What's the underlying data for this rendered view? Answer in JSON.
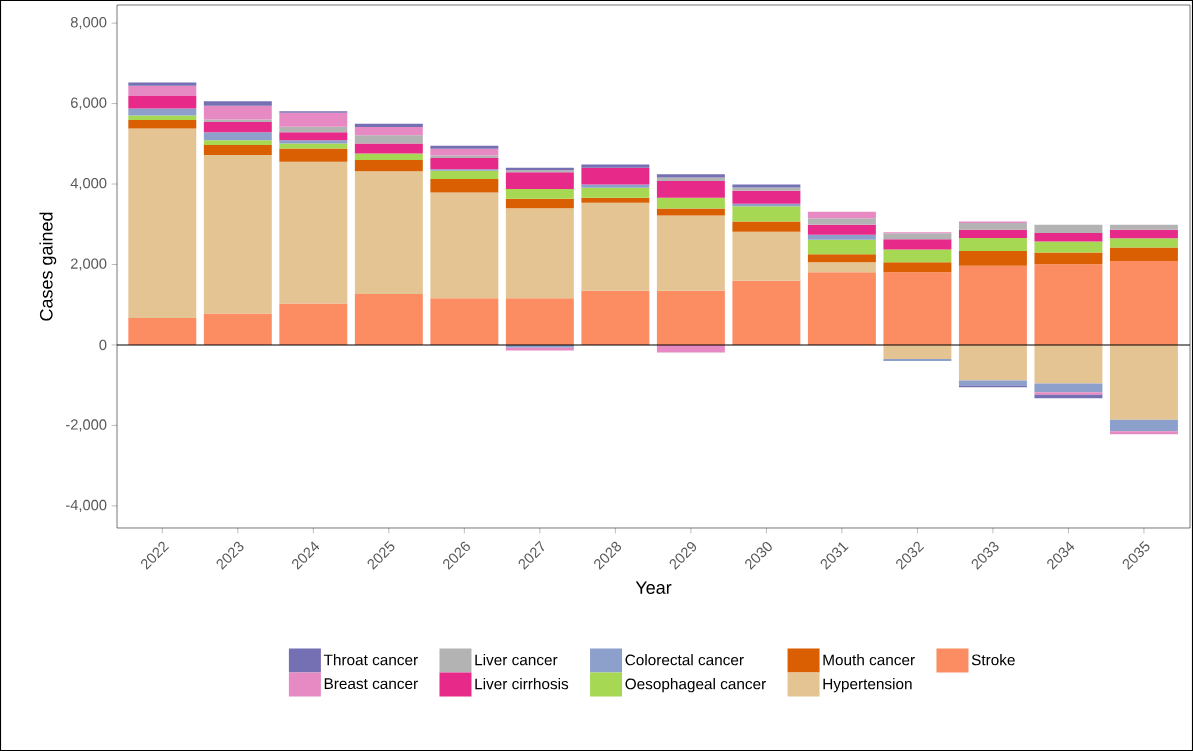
{
  "chart_data": {
    "type": "bar",
    "stacked": true,
    "xlabel": "Year",
    "ylabel": "Cases gained",
    "categories": [
      "2022",
      "2023",
      "2024",
      "2025",
      "2026",
      "2027",
      "2028",
      "2029",
      "2030",
      "2031",
      "2032",
      "2033",
      "2034",
      "2035"
    ],
    "series": [
      {
        "name": "Stroke",
        "color": "#fc8d62",
        "values": [
          670,
          780,
          1030,
          1265,
          1160,
          1160,
          1350,
          1350,
          1595,
          1805,
          1805,
          1970,
          2005,
          2085
        ]
      },
      {
        "name": "Hypertension",
        "color": "#e5c494",
        "values": [
          4710,
          3940,
          3525,
          3050,
          2630,
          2235,
          2185,
          1870,
          1220,
          250,
          -350,
          -885,
          -960,
          -1860
        ]
      },
      {
        "name": "Mouth cancer",
        "color": "#d95f02",
        "values": [
          210,
          250,
          330,
          280,
          335,
          240,
          125,
          170,
          255,
          200,
          250,
          365,
          290,
          335
        ]
      },
      {
        "name": "Oesophageal cancer",
        "color": "#a6d854",
        "values": [
          115,
          120,
          125,
          165,
          205,
          240,
          250,
          270,
          375,
          360,
          320,
          325,
          275,
          230
        ]
      },
      {
        "name": "Colorectal cancer",
        "color": "#8da0cb",
        "values": [
          175,
          200,
          80,
          0,
          40,
          -70,
          80,
          0,
          65,
          125,
          -50,
          -125,
          -215,
          -285
        ]
      },
      {
        "name": "Liver cirrhosis",
        "color": "#e7298a",
        "values": [
          310,
          250,
          200,
          250,
          280,
          415,
          415,
          415,
          325,
          250,
          250,
          205,
          210,
          215
        ]
      },
      {
        "name": "Liver cancer",
        "color": "#b3b3b3",
        "values": [
          null,
          65,
          135,
          205,
          60,
          50,
          null,
          85,
          80,
          160,
          150,
          165,
          210,
          120
        ]
      },
      {
        "name": "Breast cancer",
        "color": "#e78ac3",
        "values": [
          250,
          340,
          345,
          200,
          170,
          -70,
          0,
          -190,
          0,
          160,
          25,
          40,
          -65,
          -75
        ]
      },
      {
        "name": "Throat cancer",
        "color": "#7570b3",
        "values": [
          85,
          115,
          40,
          85,
          70,
          65,
          80,
          80,
          75,
          0,
          0,
          -40,
          -85,
          0
        ]
      }
    ],
    "ylim": [
      -4550,
      8450
    ],
    "yticks": [
      {
        "value": -4000,
        "label": "-4,000"
      },
      {
        "value": -2000,
        "label": "-2,000"
      },
      0,
      {
        "value": 2000,
        "label": "2,000"
      },
      {
        "value": 4000,
        "label": "4,000"
      },
      {
        "value": 6000,
        "label": "6,000"
      },
      {
        "value": 8000,
        "label": "8,000"
      }
    ],
    "ref_lines": [
      {
        "axis": "y",
        "value": 0
      }
    ],
    "grid": false,
    "legend": "bottom"
  }
}
